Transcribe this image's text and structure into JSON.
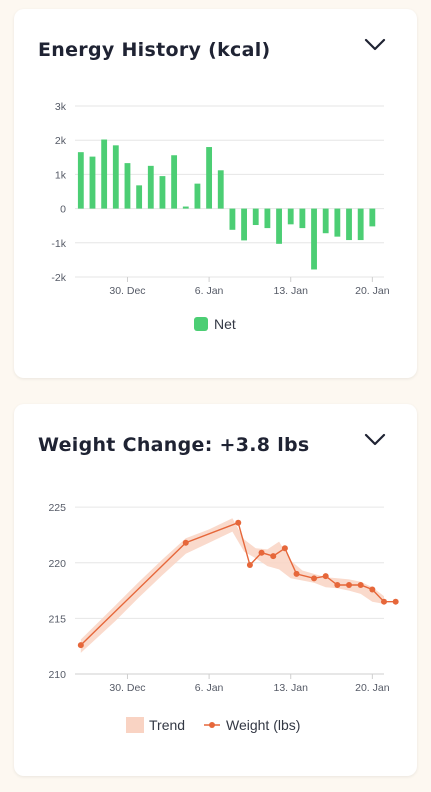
{
  "energy": {
    "title": "Energy History (kcal)",
    "chevron_icon": "chevron-down-icon"
  },
  "weight": {
    "title": "Weight Change: +3.8 lbs",
    "chevron_icon": "chevron-down-icon"
  },
  "colors": {
    "net_bar": "#4cce74",
    "weight_line": "#e6673a",
    "trend_band": "#f9d3c3",
    "grid": "#e6e6e6",
    "title": "#1f2333"
  },
  "chart_data": [
    {
      "type": "bar",
      "title": "Energy History (kcal)",
      "xlabel": "",
      "ylabel": "",
      "ylim": [
        -2000,
        3000
      ],
      "y_ticks": [
        3000,
        2000,
        1000,
        0,
        -1000,
        -2000
      ],
      "y_tick_labels": [
        "3k",
        "2k",
        "1k",
        "0",
        "-1k",
        "-2k"
      ],
      "x_ticks": [
        "30. Dec",
        "6. Jan",
        "13. Jan",
        "20. Jan"
      ],
      "x_tick_days": [
        4,
        11,
        18,
        25
      ],
      "x_range_days": [
        -0.5,
        26
      ],
      "legend_position": "bottom-center",
      "grid": true,
      "series": [
        {
          "name": "Net",
          "days": [
            0,
            1,
            2,
            3,
            4,
            5,
            6,
            7,
            8,
            9,
            10,
            11,
            12,
            13,
            14,
            15,
            16,
            17,
            18,
            19,
            20,
            21,
            22,
            23,
            24,
            25
          ],
          "values": [
            1650,
            1520,
            2020,
            1850,
            1330,
            680,
            1250,
            950,
            1560,
            60,
            730,
            1800,
            1120,
            -620,
            -930,
            -480,
            -570,
            -1030,
            -460,
            -570,
            -1780,
            -720,
            -820,
            -920,
            -920,
            -520
          ]
        }
      ]
    },
    {
      "type": "line",
      "title": "Weight Change: +3.8 lbs",
      "xlabel": "",
      "ylabel": "",
      "ylim": [
        210,
        226
      ],
      "y_ticks": [
        225,
        220,
        215,
        210
      ],
      "y_tick_labels": [
        "225",
        "220",
        "215",
        "210"
      ],
      "x_ticks": [
        "30. Dec",
        "6. Jan",
        "13. Jan",
        "20. Jan"
      ],
      "x_tick_days": [
        4,
        11,
        18,
        25
      ],
      "x_range_days": [
        -0.5,
        26
      ],
      "legend_position": "bottom-center",
      "grid": true,
      "series": [
        {
          "name": "Trend",
          "kind": "area-range",
          "days": [
            0,
            3,
            5,
            7,
            9,
            11,
            13,
            14,
            15,
            16,
            17,
            18,
            19,
            20,
            21,
            22,
            23,
            24,
            25,
            26
          ],
          "low": [
            211.9,
            214.8,
            216.9,
            218.9,
            220.8,
            221.8,
            222.8,
            221.0,
            220.4,
            219.7,
            219.4,
            218.6,
            218.4,
            218.2,
            217.8,
            217.7,
            217.5,
            217.2,
            216.5,
            216.3
          ],
          "high": [
            213.1,
            216.2,
            218.3,
            220.3,
            222.2,
            223.0,
            224.0,
            222.1,
            221.3,
            221.2,
            221.9,
            220.2,
            219.3,
            219.0,
            218.7,
            218.6,
            218.5,
            218.3,
            217.8,
            217.0
          ]
        },
        {
          "name": "Weight (lbs)",
          "kind": "line-markers",
          "days": [
            0,
            9,
            13.5,
            14.5,
            15.5,
            16.5,
            17.5,
            18.5,
            20,
            21,
            22,
            23,
            24,
            25,
            26,
            27
          ],
          "values": [
            212.6,
            221.8,
            223.6,
            219.8,
            220.9,
            220.6,
            221.3,
            219.0,
            218.6,
            218.8,
            218.0,
            218.0,
            218.0,
            217.6,
            216.5,
            216.5
          ]
        }
      ]
    }
  ]
}
